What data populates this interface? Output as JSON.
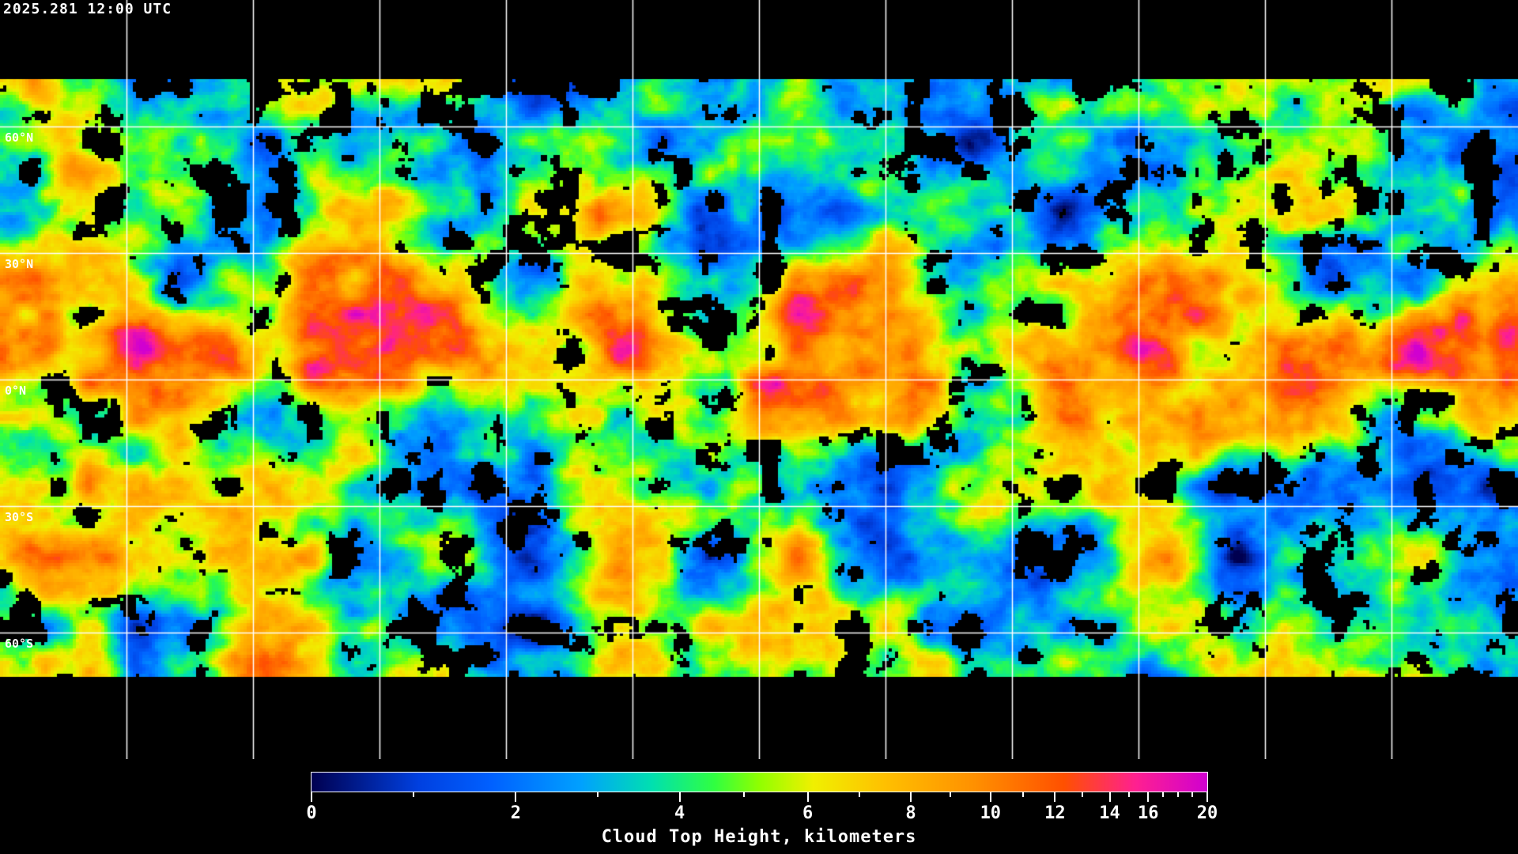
{
  "header": {
    "timestamp": "2025.281 12:00 UTC"
  },
  "map": {
    "projection": "equirectangular",
    "grid_spacing_degrees": 30,
    "lat_labels": [
      "60°N",
      "30°N",
      "0°N",
      "30°S",
      "60°S"
    ],
    "grid_color": "#ffffff",
    "coastline_color": "#ffffff",
    "no_data_color": "#000000"
  },
  "colorbar": {
    "title": "Cloud Top Height, kilometers",
    "min": 0,
    "max": 20,
    "major_ticks": [
      0,
      2,
      4,
      6,
      8,
      10,
      12,
      14,
      16,
      20
    ],
    "major_tick_labels": [
      "0",
      "2",
      "4",
      "6",
      "8",
      "10",
      "12",
      "14",
      "16",
      "20"
    ],
    "minor_ticks": [
      1,
      3,
      5,
      7,
      9,
      11,
      13,
      15,
      17,
      18,
      19
    ],
    "colors": [
      "#000050",
      "#0040e0",
      "#0060ff",
      "#00a0ff",
      "#00e0b0",
      "#30ff40",
      "#90ff00",
      "#f0f000",
      "#ffc000",
      "#ff9000",
      "#ff5000",
      "#ff2090",
      "#d000d0"
    ]
  }
}
